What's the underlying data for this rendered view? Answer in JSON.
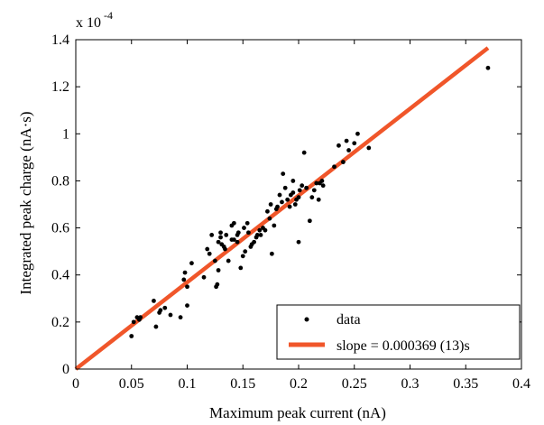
{
  "chart_data": {
    "type": "scatter",
    "xlabel": "Maximum peak current (nA)",
    "ylabel": "Integrated peak charge (nA·s)",
    "exponent_label": "x 10",
    "exponent_power": "-4",
    "xlim": [
      0,
      0.4
    ],
    "ylim": [
      0,
      1.4
    ],
    "y_scale_note": "y values in units of 1e-4 nA·s",
    "xticks": [
      "0",
      "0.05",
      "0.1",
      "0.15",
      "0.2",
      "0.25",
      "0.3",
      "0.35",
      "0.4"
    ],
    "yticks": [
      "0",
      "0.2",
      "0.4",
      "0.6",
      "0.8",
      "1",
      "1.2",
      "1.4"
    ],
    "grid": false,
    "legend_position": "bottom-right",
    "series": [
      {
        "name": "data",
        "kind": "points",
        "color": "#000000",
        "points": [
          [
            0.05,
            0.14
          ],
          [
            0.052,
            0.2
          ],
          [
            0.055,
            0.22
          ],
          [
            0.057,
            0.21
          ],
          [
            0.058,
            0.22
          ],
          [
            0.07,
            0.29
          ],
          [
            0.072,
            0.18
          ],
          [
            0.075,
            0.24
          ],
          [
            0.076,
            0.25
          ],
          [
            0.08,
            0.26
          ],
          [
            0.085,
            0.23
          ],
          [
            0.094,
            0.22
          ],
          [
            0.097,
            0.38
          ],
          [
            0.098,
            0.41
          ],
          [
            0.1,
            0.27
          ],
          [
            0.1,
            0.35
          ],
          [
            0.104,
            0.45
          ],
          [
            0.115,
            0.39
          ],
          [
            0.118,
            0.51
          ],
          [
            0.12,
            0.49
          ],
          [
            0.122,
            0.57
          ],
          [
            0.125,
            0.46
          ],
          [
            0.126,
            0.35
          ],
          [
            0.127,
            0.36
          ],
          [
            0.128,
            0.42
          ],
          [
            0.128,
            0.54
          ],
          [
            0.13,
            0.58
          ],
          [
            0.13,
            0.56
          ],
          [
            0.131,
            0.53
          ],
          [
            0.133,
            0.52
          ],
          [
            0.134,
            0.51
          ],
          [
            0.135,
            0.57
          ],
          [
            0.137,
            0.46
          ],
          [
            0.14,
            0.55
          ],
          [
            0.14,
            0.61
          ],
          [
            0.142,
            0.62
          ],
          [
            0.142,
            0.55
          ],
          [
            0.145,
            0.54
          ],
          [
            0.145,
            0.57
          ],
          [
            0.146,
            0.58
          ],
          [
            0.148,
            0.43
          ],
          [
            0.15,
            0.48
          ],
          [
            0.151,
            0.6
          ],
          [
            0.152,
            0.5
          ],
          [
            0.154,
            0.62
          ],
          [
            0.155,
            0.58
          ],
          [
            0.157,
            0.52
          ],
          [
            0.158,
            0.53
          ],
          [
            0.16,
            0.54
          ],
          [
            0.162,
            0.56
          ],
          [
            0.163,
            0.57
          ],
          [
            0.165,
            0.59
          ],
          [
            0.166,
            0.57
          ],
          [
            0.168,
            0.6
          ],
          [
            0.17,
            0.59
          ],
          [
            0.172,
            0.67
          ],
          [
            0.174,
            0.64
          ],
          [
            0.175,
            0.7
          ],
          [
            0.176,
            0.49
          ],
          [
            0.178,
            0.61
          ],
          [
            0.18,
            0.68
          ],
          [
            0.181,
            0.69
          ],
          [
            0.183,
            0.74
          ],
          [
            0.185,
            0.71
          ],
          [
            0.186,
            0.83
          ],
          [
            0.188,
            0.77
          ],
          [
            0.19,
            0.72
          ],
          [
            0.192,
            0.69
          ],
          [
            0.193,
            0.74
          ],
          [
            0.195,
            0.8
          ],
          [
            0.195,
            0.75
          ],
          [
            0.197,
            0.7
          ],
          [
            0.198,
            0.72
          ],
          [
            0.2,
            0.54
          ],
          [
            0.2,
            0.73
          ],
          [
            0.201,
            0.76
          ],
          [
            0.203,
            0.78
          ],
          [
            0.205,
            0.92
          ],
          [
            0.207,
            0.77
          ],
          [
            0.21,
            0.63
          ],
          [
            0.212,
            0.73
          ],
          [
            0.214,
            0.76
          ],
          [
            0.216,
            0.79
          ],
          [
            0.218,
            0.72
          ],
          [
            0.219,
            0.79
          ],
          [
            0.221,
            0.8
          ],
          [
            0.222,
            0.78
          ],
          [
            0.232,
            0.86
          ],
          [
            0.236,
            0.95
          ],
          [
            0.24,
            0.88
          ],
          [
            0.243,
            0.97
          ],
          [
            0.245,
            0.93
          ],
          [
            0.25,
            0.96
          ],
          [
            0.253,
            1.0
          ],
          [
            0.263,
            0.94
          ],
          [
            0.37,
            1.28
          ]
        ]
      },
      {
        "name": "slope = 0.000369 (13)s",
        "kind": "line",
        "color": "#f0562a",
        "x": [
          0,
          0.37
        ],
        "y": [
          0,
          1.365
        ]
      }
    ]
  }
}
